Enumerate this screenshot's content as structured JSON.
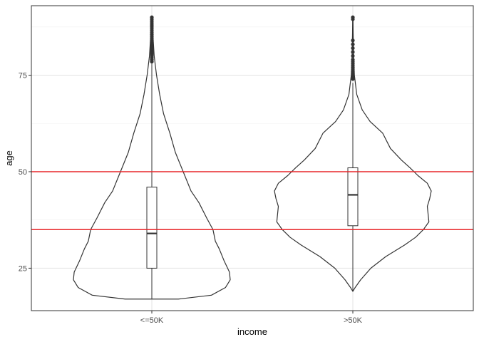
{
  "chart_data": {
    "type": "violin",
    "xlabel": "income",
    "ylabel": "age",
    "categories": [
      "<=50K",
      ">50K"
    ],
    "ylim": [
      14,
      93
    ],
    "yticks": [
      25,
      50,
      75
    ],
    "grid": true,
    "hlines": [
      {
        "y": 50,
        "color": "#e8262a"
      },
      {
        "y": 35,
        "color": "#e8262a"
      }
    ],
    "series": [
      {
        "category": "<=50K",
        "violin_profile": [
          [
            17,
            0.34
          ],
          [
            18,
            0.76
          ],
          [
            20,
            0.94
          ],
          [
            22,
            1.0
          ],
          [
            24,
            0.99
          ],
          [
            27,
            0.92
          ],
          [
            30,
            0.86
          ],
          [
            32,
            0.81
          ],
          [
            35,
            0.78
          ],
          [
            38,
            0.7
          ],
          [
            42,
            0.6
          ],
          [
            45,
            0.5
          ],
          [
            50,
            0.4
          ],
          [
            55,
            0.3
          ],
          [
            60,
            0.23
          ],
          [
            65,
            0.15
          ],
          [
            70,
            0.1
          ],
          [
            75,
            0.06
          ],
          [
            80,
            0.03
          ],
          [
            85,
            0.015
          ],
          [
            90,
            0.005
          ]
        ],
        "box": {
          "min": 17,
          "q1": 25,
          "median": 34,
          "q3": 46,
          "max": 78
        },
        "outliers": [
          78.5,
          79,
          79.5,
          80,
          80.5,
          81,
          81.5,
          82,
          82.5,
          83,
          83.5,
          84,
          84.5,
          85,
          85.5,
          86,
          86.5,
          87,
          87.5,
          88,
          88.5,
          89,
          89.5,
          90
        ]
      },
      {
        "category": ">50K",
        "violin_profile": [
          [
            19,
            0.0
          ],
          [
            20,
            0.03
          ],
          [
            22,
            0.1
          ],
          [
            25,
            0.23
          ],
          [
            28,
            0.42
          ],
          [
            31,
            0.66
          ],
          [
            33,
            0.8
          ],
          [
            35,
            0.9
          ],
          [
            37,
            0.97
          ],
          [
            39,
            0.96
          ],
          [
            41,
            0.95
          ],
          [
            43,
            0.98
          ],
          [
            45,
            1.0
          ],
          [
            47,
            0.95
          ],
          [
            49,
            0.83
          ],
          [
            51,
            0.73
          ],
          [
            53,
            0.62
          ],
          [
            56,
            0.48
          ],
          [
            60,
            0.38
          ],
          [
            63,
            0.22
          ],
          [
            66,
            0.12
          ],
          [
            70,
            0.05
          ],
          [
            75,
            0.02
          ],
          [
            80,
            0.01
          ],
          [
            86,
            0.004
          ],
          [
            90,
            0.002
          ]
        ],
        "box": {
          "min": 19,
          "q1": 36,
          "median": 44,
          "q3": 51,
          "max": 73
        },
        "outliers": [
          74,
          74.5,
          75,
          75.5,
          76,
          76.5,
          77,
          77.5,
          78,
          78.5,
          79,
          80,
          81,
          82,
          83,
          84,
          89.5,
          90
        ]
      }
    ]
  }
}
